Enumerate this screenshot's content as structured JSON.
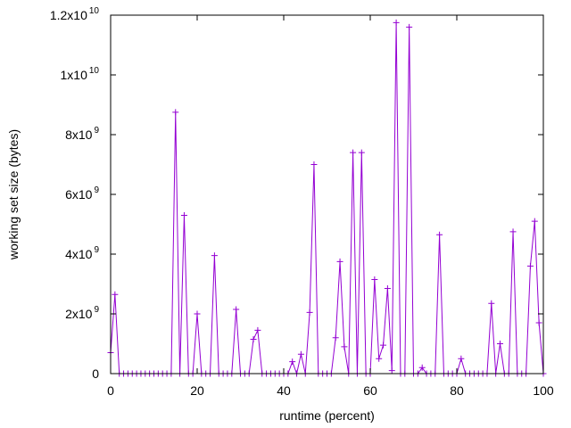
{
  "chart_data": {
    "type": "line",
    "xlabel": "runtime (percent)",
    "ylabel": "working set size (bytes)",
    "xlim": [
      0,
      100
    ],
    "ylim": [
      0,
      12000000000
    ],
    "x_ticks": [
      {
        "value": 0,
        "label": "0"
      },
      {
        "value": 20,
        "label": "20"
      },
      {
        "value": 40,
        "label": "40"
      },
      {
        "value": 60,
        "label": "60"
      },
      {
        "value": 80,
        "label": "80"
      },
      {
        "value": 100,
        "label": "100"
      }
    ],
    "y_ticks": [
      {
        "value": 0,
        "mantissa": "0",
        "exponent": ""
      },
      {
        "value": 2000000000,
        "mantissa": "2x10",
        "exponent": "9"
      },
      {
        "value": 4000000000,
        "mantissa": "4x10",
        "exponent": "9"
      },
      {
        "value": 6000000000,
        "mantissa": "6x10",
        "exponent": "9"
      },
      {
        "value": 8000000000,
        "mantissa": "8x10",
        "exponent": "9"
      },
      {
        "value": 10000000000,
        "mantissa": "1x10",
        "exponent": "10"
      },
      {
        "value": 12000000000,
        "mantissa": "1.2x10",
        "exponent": "10"
      }
    ],
    "grid": false,
    "legend": "none",
    "colors": {
      "series": "#9400d3",
      "axis": "#000000"
    },
    "marker": "plus",
    "series": [
      {
        "x": [
          0,
          1,
          2,
          3,
          4,
          5,
          6,
          7,
          8,
          9,
          10,
          11,
          12,
          13,
          14,
          15,
          16,
          17,
          18,
          19,
          20,
          21,
          22,
          23,
          24,
          25,
          26,
          27,
          28,
          29,
          30,
          31,
          32,
          33,
          34,
          35,
          36,
          37,
          38,
          39,
          40,
          41,
          42,
          43,
          44,
          45,
          46,
          47,
          48,
          49,
          50,
          51,
          52,
          53,
          54,
          55,
          56,
          57,
          58,
          59,
          60,
          61,
          62,
          63,
          64,
          65,
          66,
          67,
          68,
          69,
          70,
          71,
          72,
          73,
          74,
          75,
          76,
          77,
          78,
          79,
          80,
          81,
          82,
          83,
          84,
          85,
          86,
          87,
          88,
          89,
          90,
          91,
          92,
          93,
          94,
          95,
          96,
          97,
          98,
          99,
          100
        ],
        "y": [
          700000000,
          2650000000,
          0,
          0,
          0,
          0,
          0,
          0,
          0,
          0,
          0,
          0,
          0,
          0,
          0,
          8750000000,
          0,
          5300000000,
          0,
          0,
          2000000000,
          0,
          0,
          0,
          3950000000,
          0,
          0,
          0,
          0,
          2150000000,
          0,
          0,
          0,
          1150000000,
          1450000000,
          0,
          0,
          0,
          0,
          0,
          0,
          0,
          400000000,
          0,
          650000000,
          0,
          2050000000,
          7000000000,
          0,
          0,
          0,
          0,
          1200000000,
          3750000000,
          900000000,
          0,
          7400000000,
          0,
          7400000000,
          0,
          0,
          3150000000,
          500000000,
          950000000,
          2850000000,
          100000000,
          11750000000,
          0,
          0,
          11600000000,
          0,
          0,
          200000000,
          0,
          0,
          0,
          4650000000,
          0,
          0,
          0,
          0,
          500000000,
          0,
          0,
          0,
          0,
          0,
          0,
          2350000000,
          0,
          1000000000,
          0,
          0,
          4750000000,
          0,
          0,
          0,
          3600000000,
          5100000000,
          1700000000,
          0
        ]
      }
    ]
  }
}
